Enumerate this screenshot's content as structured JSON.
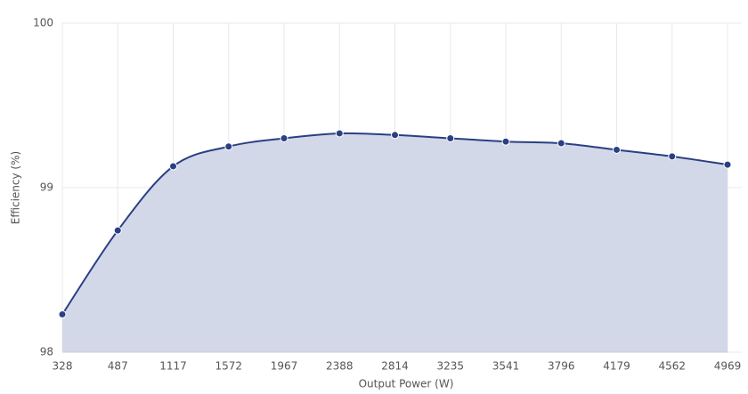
{
  "chart_data": {
    "type": "area",
    "x_label": "Output Power (W)",
    "y_label": "Efficiency (%)",
    "categories": [
      "328",
      "487",
      "1117",
      "1572",
      "1967",
      "2388",
      "2814",
      "3235",
      "3541",
      "3796",
      "4179",
      "4562",
      "4969"
    ],
    "values": [
      98.23,
      98.74,
      99.13,
      99.25,
      99.3,
      99.33,
      99.32,
      99.3,
      99.28,
      99.27,
      99.23,
      99.19,
      99.14
    ],
    "color": "#2a3f84",
    "fill": "#d3d8e8",
    "ylim": [
      98,
      100
    ],
    "yticks": [
      98,
      99,
      100
    ],
    "grid": true
  }
}
